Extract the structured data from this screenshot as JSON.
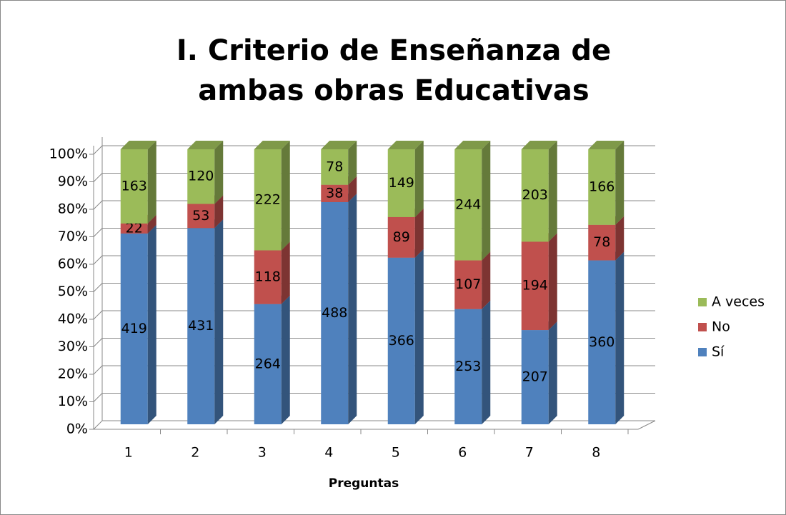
{
  "chart_data": {
    "type": "bar",
    "stacking": "percent",
    "title": "I. Criterio de Enseñanza de ambas obras Educativas",
    "xlabel": "Preguntas",
    "categories": [
      "1",
      "2",
      "3",
      "4",
      "5",
      "6",
      "7",
      "8"
    ],
    "series": [
      {
        "name": "Sí",
        "color": "#4f81bd",
        "values": [
          419,
          431,
          264,
          488,
          366,
          253,
          207,
          360
        ]
      },
      {
        "name": "No",
        "color": "#c0504d",
        "values": [
          22,
          53,
          118,
          38,
          89,
          107,
          194,
          78
        ]
      },
      {
        "name": "A veces",
        "color": "#9bbb59",
        "values": [
          163,
          120,
          222,
          78,
          149,
          244,
          203,
          166
        ]
      }
    ],
    "ylim": [
      0,
      100
    ],
    "yticks": [
      {
        "value": 0,
        "label": "0%"
      },
      {
        "value": 10,
        "label": "10%"
      },
      {
        "value": 20,
        "label": "20%"
      },
      {
        "value": 30,
        "label": "30%"
      },
      {
        "value": 40,
        "label": "40%"
      },
      {
        "value": 50,
        "label": "50%"
      },
      {
        "value": 60,
        "label": "60%"
      },
      {
        "value": 70,
        "label": "70%"
      },
      {
        "value": 80,
        "label": "80%"
      },
      {
        "value": 90,
        "label": "90%"
      },
      {
        "value": 100,
        "label": "100%"
      }
    ],
    "grid": true,
    "legend": "right"
  }
}
